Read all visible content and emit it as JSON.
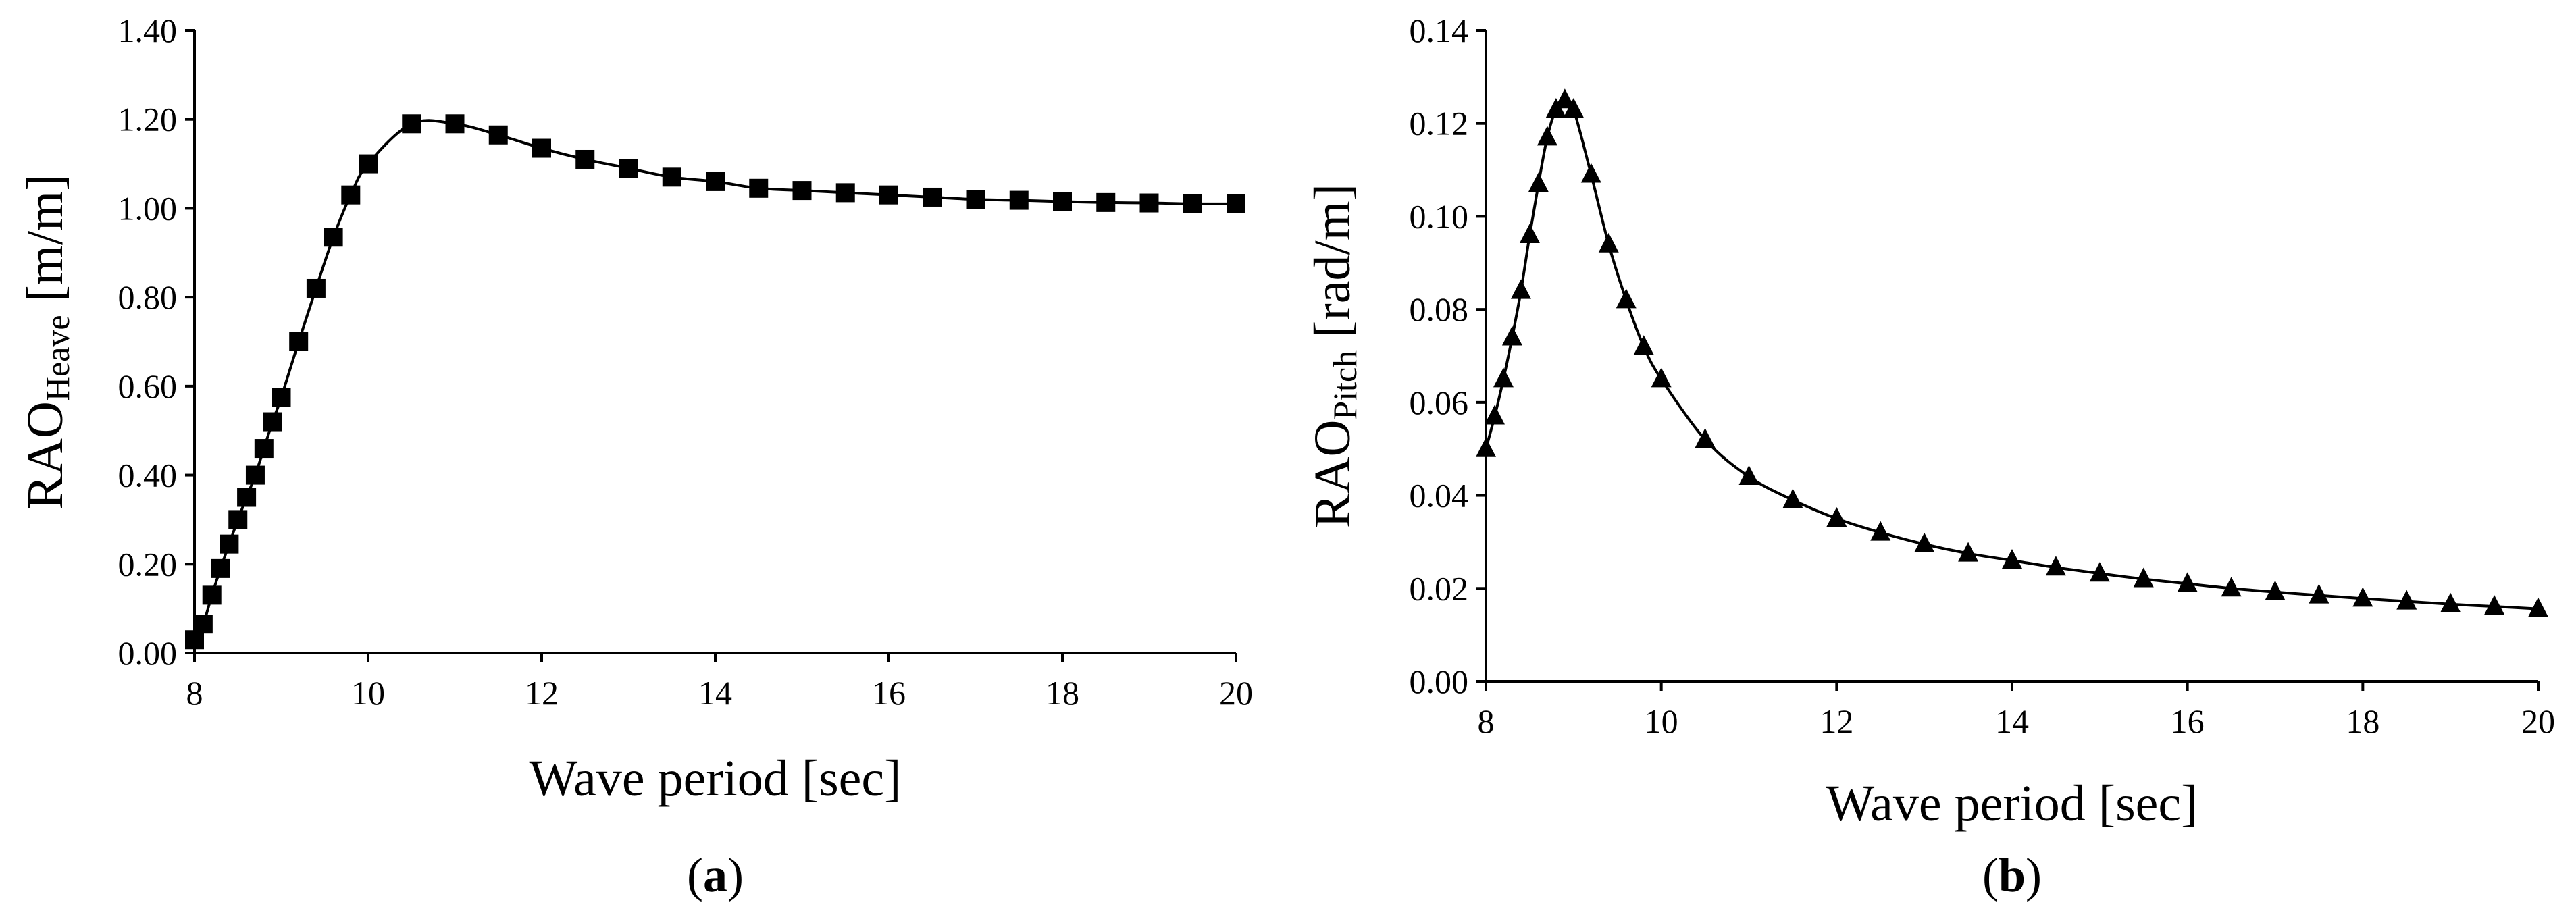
{
  "chart_data": [
    {
      "type": "line",
      "panel_label": "a",
      "xlabel": "Wave period [sec]",
      "ylabel": {
        "main": "RAO",
        "sub": "Heave",
        "unit": " [m/m]"
      },
      "xlim": [
        8,
        20
      ],
      "ylim": [
        0,
        1.4
      ],
      "xticks": [
        8,
        10,
        12,
        14,
        16,
        18,
        20
      ],
      "yticks": [
        "0.00",
        "0.20",
        "0.40",
        "0.60",
        "0.80",
        "1.00",
        "1.20",
        "1.40"
      ],
      "marker": "square",
      "grid": false,
      "series": [
        {
          "x": [
            8.0,
            8.1,
            8.2,
            8.3,
            8.4,
            8.5,
            8.6,
            8.7,
            8.8,
            8.9,
            9.0,
            9.2,
            9.4,
            9.6,
            9.8,
            10.0,
            10.5,
            11.0,
            11.5,
            12.0,
            12.5,
            13.0,
            13.5,
            14.0,
            14.5,
            15.0,
            15.5,
            16.0,
            16.5,
            17.0,
            17.5,
            18.0,
            18.5,
            19.0,
            19.5,
            20.0
          ],
          "y": [
            0.03,
            0.065,
            0.13,
            0.19,
            0.245,
            0.3,
            0.35,
            0.4,
            0.46,
            0.52,
            0.575,
            0.7,
            0.82,
            0.935,
            1.03,
            1.1,
            1.19,
            1.19,
            1.165,
            1.135,
            1.11,
            1.09,
            1.07,
            1.06,
            1.045,
            1.04,
            1.035,
            1.03,
            1.025,
            1.02,
            1.018,
            1.015,
            1.013,
            1.012,
            1.01,
            1.01
          ]
        }
      ]
    },
    {
      "type": "line",
      "panel_label": "b",
      "xlabel": "Wave period [sec]",
      "ylabel": {
        "main": "RAO",
        "sub": "Pitch",
        "unit": " [rad/m]"
      },
      "xlim": [
        8,
        20
      ],
      "ylim": [
        0,
        0.14
      ],
      "xticks": [
        8,
        10,
        12,
        14,
        16,
        18,
        20
      ],
      "yticks": [
        "0.00",
        "0.02",
        "0.04",
        "0.06",
        "0.08",
        "0.10",
        "0.12",
        "0.14"
      ],
      "marker": "triangle",
      "grid": false,
      "series": [
        {
          "x": [
            8.0,
            8.1,
            8.2,
            8.3,
            8.4,
            8.5,
            8.6,
            8.7,
            8.8,
            8.9,
            9.0,
            9.2,
            9.4,
            9.6,
            9.8,
            10.0,
            10.5,
            11.0,
            11.5,
            12.0,
            12.5,
            13.0,
            13.5,
            14.0,
            14.5,
            15.0,
            15.5,
            16.0,
            16.5,
            17.0,
            17.5,
            18.0,
            18.5,
            19.0,
            19.5,
            20.0
          ],
          "y": [
            0.05,
            0.057,
            0.065,
            0.074,
            0.084,
            0.096,
            0.107,
            0.117,
            0.123,
            0.125,
            0.123,
            0.109,
            0.094,
            0.082,
            0.072,
            0.065,
            0.052,
            0.044,
            0.039,
            0.035,
            0.032,
            0.0295,
            0.0275,
            0.026,
            0.0245,
            0.0232,
            0.022,
            0.021,
            0.02,
            0.0192,
            0.0185,
            0.0178,
            0.0172,
            0.0166,
            0.0161,
            0.0156
          ]
        }
      ]
    }
  ]
}
